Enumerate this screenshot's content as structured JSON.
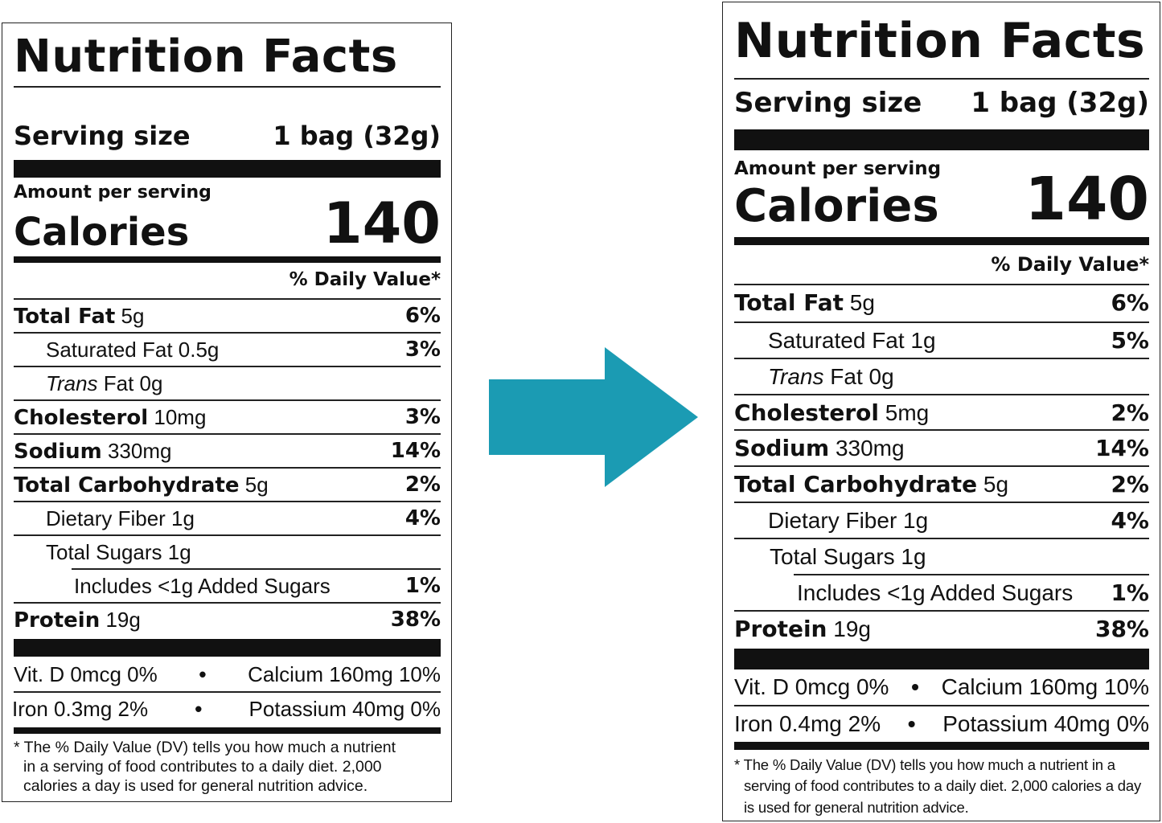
{
  "colors": {
    "arrow": "#1b9bb3",
    "ink": "#111111"
  },
  "arrow_icon": "right-arrow-icon",
  "labels": [
    {
      "title": "Nutrition Facts",
      "serving_label": "Serving size",
      "serving_value": "1 bag (32g)",
      "amount_per_serving": "Amount per serving",
      "calories_label": "Calories",
      "calories_value": "140",
      "daily_value_header": "% Daily Value*",
      "total_fat": {
        "name": "Total Fat",
        "amount": "5g",
        "dv": "6%"
      },
      "saturated_fat": {
        "name": "Saturated Fat 0.5g",
        "dv": "3%"
      },
      "trans_fat": {
        "prefix": "Trans",
        "rest": "Fat 0g"
      },
      "cholesterol": {
        "name": "Cholesterol",
        "amount": "10mg",
        "dv": "3%"
      },
      "sodium": {
        "name": "Sodium",
        "amount": "330mg",
        "dv": "14%"
      },
      "total_carb": {
        "name": "Total Carbohydrate",
        "amount": "5g",
        "dv": "2%"
      },
      "dietary_fiber": {
        "name": "Dietary Fiber 1g",
        "dv": "4%"
      },
      "total_sugars": {
        "name": "Total Sugars 1g"
      },
      "added_sugars": {
        "name": "Includes <1g Added Sugars",
        "dv": "1%"
      },
      "protein": {
        "name": "Protein",
        "amount": "19g",
        "dv": "38%"
      },
      "vit_d": "Vit. D 0mcg 0%",
      "calcium": "Calcium 160mg 10%",
      "iron": "Iron 0.3mg 2%",
      "potassium": "Potassium 40mg 0%",
      "bullet": "•",
      "footnote_1": "* The % Daily Value (DV) tells you how much a nutrient",
      "footnote_2": "in a serving of food contributes to a daily diet. 2,000",
      "footnote_3": "calories a day is used for general nutrition advice."
    },
    {
      "title": "Nutrition Facts",
      "serving_label": "Serving size",
      "serving_value": "1 bag (32g)",
      "amount_per_serving": "Amount per serving",
      "calories_label": "Calories",
      "calories_value": "140",
      "daily_value_header": "% Daily Value*",
      "total_fat": {
        "name": "Total Fat",
        "amount": "5g",
        "dv": "6%"
      },
      "saturated_fat": {
        "name": "Saturated Fat 1g",
        "dv": "5%"
      },
      "trans_fat": {
        "prefix": "Trans",
        "rest": "Fat 0g"
      },
      "cholesterol": {
        "name": "Cholesterol",
        "amount": "5mg",
        "dv": "2%"
      },
      "sodium": {
        "name": "Sodium",
        "amount": "330mg",
        "dv": "14%"
      },
      "total_carb": {
        "name": "Total Carbohydrate",
        "amount": "5g",
        "dv": "2%"
      },
      "dietary_fiber": {
        "name": "Dietary Fiber 1g",
        "dv": "4%"
      },
      "total_sugars": {
        "name": "Total Sugars 1g"
      },
      "added_sugars": {
        "name": "Includes <1g Added Sugars",
        "dv": "1%"
      },
      "protein": {
        "name": "Protein",
        "amount": "19g",
        "dv": "38%"
      },
      "vit_d": "Vit. D 0mcg 0%",
      "calcium": "Calcium 160mg 10%",
      "iron": "Iron 0.4mg 2%",
      "potassium": "Potassium 40mg 0%",
      "bullet": "•",
      "footnote_1": "* The % Daily Value (DV) tells you how much a nutrient in a",
      "footnote_2": "serving of food contributes to a daily diet. 2,000 calories a day",
      "footnote_3": "is used for general nutrition advice."
    }
  ]
}
